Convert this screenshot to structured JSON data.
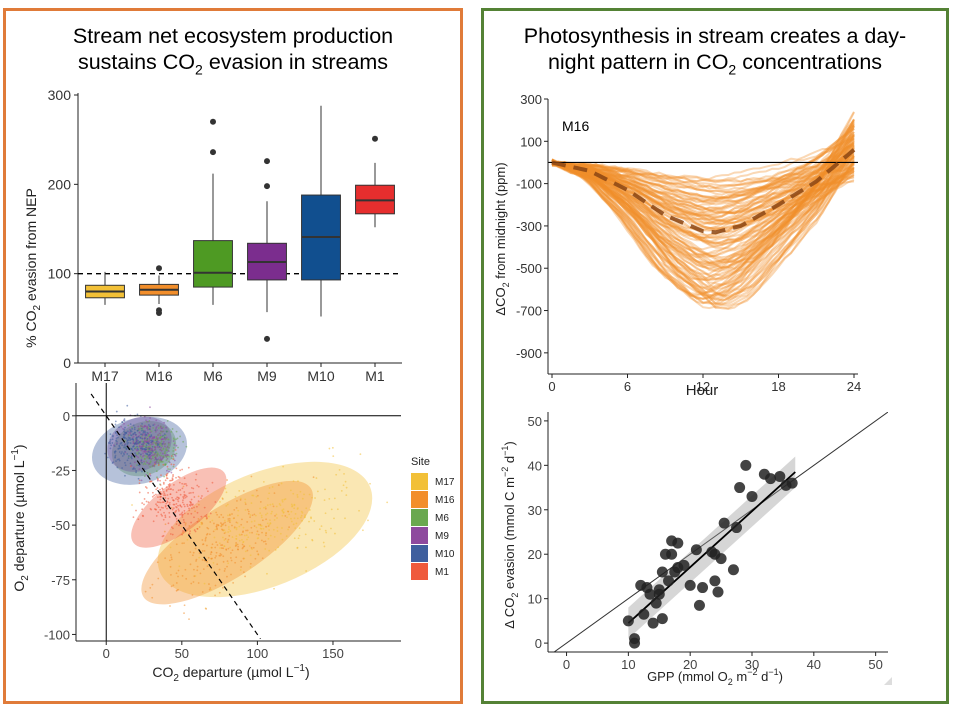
{
  "left_panel": {
    "title_line1": "Stream net ecosystem production",
    "title_line2_pre": "sustains CO",
    "title_line2_sub": "2",
    "title_line2_post": " evasion in streams",
    "border_color": "#e07b39"
  },
  "right_panel": {
    "title_line1": "Photosynthesis in stream creates a day-",
    "title_line2_pre": "night pattern in CO",
    "title_line2_sub": "2",
    "title_line2_post": " concentrations",
    "border_color": "#548235"
  },
  "chart_data": [
    {
      "id": "boxplot",
      "type": "box",
      "ylabel_pre": "% CO",
      "ylabel_sub": "2",
      "ylabel_post": " evasion from NEP",
      "ylim": [
        0,
        300
      ],
      "yticks": [
        0,
        100,
        200,
        300
      ],
      "reference_line": 100,
      "categories": [
        "M17",
        "M16",
        "M6",
        "M9",
        "M10",
        "M1"
      ],
      "boxes": [
        {
          "site": "M17",
          "color": "#f2c037",
          "whisker_low": 65,
          "q1": 73,
          "median": 80,
          "q3": 87,
          "whisker_high": 102,
          "outliers": []
        },
        {
          "site": "M16",
          "color": "#f28e2b",
          "whisker_low": 66,
          "q1": 76,
          "median": 82,
          "q3": 88,
          "whisker_high": 98,
          "outliers": [
            56,
            59,
            106
          ]
        },
        {
          "site": "M6",
          "color": "#4e9a23",
          "whisker_low": 65,
          "q1": 85,
          "median": 101,
          "q3": 137,
          "whisker_high": 212,
          "outliers": [
            236,
            270
          ]
        },
        {
          "site": "M9",
          "color": "#7b2d8e",
          "whisker_low": 57,
          "q1": 93,
          "median": 113,
          "q3": 134,
          "whisker_high": 181,
          "outliers": [
            27,
            198,
            226
          ]
        },
        {
          "site": "M10",
          "color": "#114f8f",
          "whisker_low": 52,
          "q1": 93,
          "median": 141,
          "q3": 188,
          "whisker_high": 288,
          "outliers": []
        },
        {
          "site": "M1",
          "color": "#e62e2e",
          "whisker_low": 152,
          "q1": 167,
          "median": 182,
          "q3": 199,
          "whisker_high": 224,
          "outliers": [
            251
          ]
        }
      ]
    },
    {
      "id": "departure",
      "type": "scatter",
      "xlabel_pre": "CO",
      "xlabel_sub": "2",
      "xlabel_post": " departure (µmol L",
      "xlabel_sup": "−1",
      "xlabel_end": ")",
      "ylabel_pre": "O",
      "ylabel_sub": "2",
      "ylabel_post": " departure (µmol L",
      "ylabel_sup": "−1",
      "ylabel_end": ")",
      "xlim": [
        -20,
        195
      ],
      "ylim": [
        -103,
        15
      ],
      "xticks": [
        0,
        50,
        100,
        150
      ],
      "yticks": [
        0,
        -25,
        -50,
        -75,
        -100
      ],
      "one_to_one_line": "y = -x",
      "legend_title": "Site",
      "legend_position": "right",
      "series": [
        {
          "name": "M17",
          "color": "#f2c037",
          "center": [
            110,
            -48
          ],
          "spread": [
            38,
            11
          ],
          "ellipse": [
            105,
            -52,
            75,
            26,
            -22
          ]
        },
        {
          "name": "M16",
          "color": "#f28e2b",
          "center": [
            75,
            -58
          ],
          "spread": [
            30,
            12
          ],
          "ellipse": [
            80,
            -58,
            66,
            16,
            -33
          ]
        },
        {
          "name": "M6",
          "color": "#6aa84f",
          "center": [
            32,
            -15
          ],
          "spread": [
            9,
            7
          ],
          "ellipse": [
            25,
            -15,
            22,
            12,
            -25
          ]
        },
        {
          "name": "M9",
          "color": "#8e4a9e",
          "center": [
            28,
            -13
          ],
          "spread": [
            9,
            7
          ],
          "ellipse": [
            22,
            -13,
            22,
            12,
            -25
          ]
        },
        {
          "name": "M10",
          "color": "#3f5f9e",
          "center": [
            18,
            -13
          ],
          "spread": [
            10,
            7
          ],
          "ellipse": [
            22,
            -16,
            32,
            15,
            -15
          ]
        },
        {
          "name": "M1",
          "color": "#ef5a3c",
          "center": [
            45,
            -38
          ],
          "spread": [
            14,
            10
          ],
          "ellipse": [
            48,
            -42,
            38,
            11,
            -38
          ]
        }
      ]
    },
    {
      "id": "diel",
      "type": "line",
      "site_label": "M16",
      "xlabel": "Hour",
      "ylabel_pre": "ΔCO",
      "ylabel_sub": "2",
      "ylabel_post": " from midnight (ppm)",
      "xlim": [
        0,
        24
      ],
      "ylim": [
        -1000,
        300
      ],
      "xticks": [
        0,
        6,
        12,
        18,
        24
      ],
      "yticks": [
        100,
        -100,
        -300,
        -500,
        -700,
        -900,
        300
      ],
      "series_color": "#f28e2b",
      "mean_color": "#8b4513",
      "mean_curve": {
        "x": [
          0,
          3,
          6,
          9,
          12,
          13,
          15,
          18,
          21,
          24
        ],
        "y": [
          0,
          -40,
          -130,
          -250,
          -325,
          -330,
          -300,
          -200,
          -90,
          60
        ]
      }
    },
    {
      "id": "gpp",
      "type": "scatter",
      "xlabel_pre": "GPP (mmol O",
      "xlabel_sub": "2",
      "xlabel_mid": " m",
      "xlabel_sup1": "−2",
      "xlabel_mid2": " d",
      "xlabel_sup2": "−1",
      "xlabel_end": ")",
      "ylabel_pre": "Δ CO",
      "ylabel_sub": "2",
      "ylabel_mid": " evasion (mmol C m",
      "ylabel_sup1": "−2",
      "ylabel_mid2": " d",
      "ylabel_sup2": "−1",
      "ylabel_end": ")",
      "xlim": [
        -3,
        52
      ],
      "ylim": [
        -2,
        52
      ],
      "xticks": [
        0,
        10,
        20,
        30,
        40,
        50
      ],
      "yticks": [
        0,
        10,
        20,
        30,
        40,
        50
      ],
      "one_to_one_line": "y = x",
      "fit": {
        "x": [
          10,
          37
        ],
        "y": [
          4.5,
          38.5
        ]
      },
      "points": [
        [
          10,
          5
        ],
        [
          11,
          1
        ],
        [
          11,
          0
        ],
        [
          12,
          13
        ],
        [
          12.5,
          6.5
        ],
        [
          13,
          12.5
        ],
        [
          13.5,
          11
        ],
        [
          14,
          4.5
        ],
        [
          14.5,
          9
        ],
        [
          15,
          12
        ],
        [
          15.5,
          5.5
        ],
        [
          15.5,
          16
        ],
        [
          15,
          11
        ],
        [
          16,
          20
        ],
        [
          16.5,
          14
        ],
        [
          17,
          23
        ],
        [
          17,
          20
        ],
        [
          17.5,
          16
        ],
        [
          18,
          22.5
        ],
        [
          18,
          17
        ],
        [
          19,
          17.5
        ],
        [
          20,
          13
        ],
        [
          21,
          21
        ],
        [
          21.5,
          8.5
        ],
        [
          22,
          12.5
        ],
        [
          23.5,
          20.5
        ],
        [
          24,
          20
        ],
        [
          24,
          14
        ],
        [
          24.5,
          11.5
        ],
        [
          25,
          19
        ],
        [
          25.5,
          27
        ],
        [
          27,
          16.5
        ],
        [
          27.5,
          26
        ],
        [
          28,
          35
        ],
        [
          29,
          40
        ],
        [
          30,
          33
        ],
        [
          32,
          38
        ],
        [
          33,
          37
        ],
        [
          34.5,
          37.5
        ],
        [
          35.5,
          35.5
        ],
        [
          36.5,
          36
        ]
      ]
    }
  ]
}
